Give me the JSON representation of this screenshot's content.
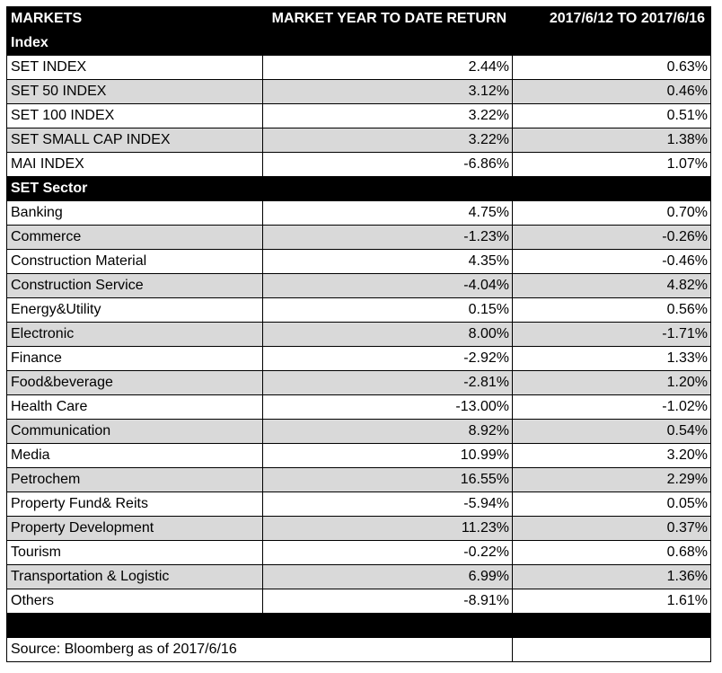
{
  "header": {
    "col_markets": "MARKETS",
    "col_ytd": "MARKET YEAR TO DATE RETURN",
    "col_week": "2017/6/12 TO 2017/6/16"
  },
  "sections": [
    {
      "title": "Index",
      "rows": [
        {
          "name": "SET INDEX",
          "ytd": "2.44%",
          "week": "0.63%"
        },
        {
          "name": "SET 50 INDEX",
          "ytd": "3.12%",
          "week": "0.46%"
        },
        {
          "name": "SET 100 INDEX",
          "ytd": "3.22%",
          "week": "0.51%"
        },
        {
          "name": "SET SMALL CAP INDEX",
          "ytd": "3.22%",
          "week": "1.38%"
        },
        {
          "name": "MAI INDEX",
          "ytd": "-6.86%",
          "week": "1.07%"
        }
      ]
    },
    {
      "title": "SET Sector",
      "rows": [
        {
          "name": "Banking",
          "ytd": "4.75%",
          "week": "0.70%"
        },
        {
          "name": "Commerce",
          "ytd": "-1.23%",
          "week": "-0.26%"
        },
        {
          "name": "Construction Material",
          "ytd": "4.35%",
          "week": "-0.46%"
        },
        {
          "name": "Construction Service",
          "ytd": "-4.04%",
          "week": "4.82%"
        },
        {
          "name": "Energy&Utility",
          "ytd": "0.15%",
          "week": "0.56%"
        },
        {
          "name": "Electronic",
          "ytd": "8.00%",
          "week": "-1.71%"
        },
        {
          "name": "Finance",
          "ytd": "-2.92%",
          "week": "1.33%"
        },
        {
          "name": "Food&beverage",
          "ytd": "-2.81%",
          "week": "1.20%"
        },
        {
          "name": "Health Care",
          "ytd": "-13.00%",
          "week": "-1.02%"
        },
        {
          "name": "Communication",
          "ytd": "8.92%",
          "week": "0.54%"
        },
        {
          "name": "Media",
          "ytd": "10.99%",
          "week": "3.20%"
        },
        {
          "name": "Petrochem",
          "ytd": "16.55%",
          "week": "2.29%"
        },
        {
          "name": "Property Fund& Reits",
          "ytd": "-5.94%",
          "week": "0.05%"
        },
        {
          "name": "Property Development",
          "ytd": "11.23%",
          "week": "0.37%"
        },
        {
          "name": "Tourism",
          "ytd": "-0.22%",
          "week": "0.68%"
        },
        {
          "name": "Transportation & Logistic",
          "ytd": "6.99%",
          "week": "1.36%"
        },
        {
          "name": "Others",
          "ytd": "-8.91%",
          "week": "1.61%"
        }
      ]
    }
  ],
  "footer": {
    "source": "Source: Bloomberg as of 2017/6/16"
  },
  "colors": {
    "header_bg": "#000000",
    "header_text": "#ffffff",
    "shaded_row": "#d9d9d9",
    "grid": "#000000"
  }
}
